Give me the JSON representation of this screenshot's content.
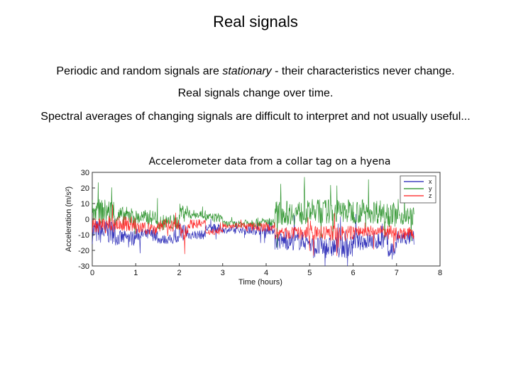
{
  "slide": {
    "title": "Real signals",
    "line1_before": "Periodic and random signals are ",
    "line1_emph": "stationary",
    "line1_after": " - their characteristics never change.",
    "line2": "Real signals change over time.",
    "line3": "Spectral averages of changing signals are difficult to interpret and not usually useful...",
    "caption": "Accelerometer data from a collar tag on a hyena"
  },
  "chart_data": {
    "type": "line",
    "xlabel": "Time (hours)",
    "ylabel": "Acceleration (m/s²)",
    "xlim": [
      0,
      8
    ],
    "ylim": [
      -30,
      30
    ],
    "xticks": [
      "0",
      "1",
      "2",
      "3",
      "4",
      "5",
      "6",
      "7",
      "8"
    ],
    "yticks": [
      "30",
      "20",
      "10",
      "0",
      "-10",
      "-20",
      "-30"
    ],
    "grid": false,
    "legend_position": "top-right",
    "series": [
      {
        "name": "x",
        "color": "#1f1fb4",
        "segments": [
          {
            "t0": 0.0,
            "t1": 0.5,
            "level": -8,
            "noise": 8
          },
          {
            "t0": 0.5,
            "t1": 1.0,
            "level": -12,
            "noise": 5
          },
          {
            "t0": 1.0,
            "t1": 1.5,
            "level": -10,
            "noise": 4
          },
          {
            "t0": 1.5,
            "t1": 2.0,
            "level": -13,
            "noise": 3
          },
          {
            "t0": 2.0,
            "t1": 2.2,
            "level": -8,
            "noise": 6
          },
          {
            "t0": 2.2,
            "t1": 2.6,
            "level": -10,
            "noise": 3
          },
          {
            "t0": 2.6,
            "t1": 3.0,
            "level": -6,
            "noise": 3
          },
          {
            "t0": 3.0,
            "t1": 3.5,
            "level": -7,
            "noise": 2
          },
          {
            "t0": 3.5,
            "t1": 4.2,
            "level": -7,
            "noise": 3
          },
          {
            "t0": 4.2,
            "t1": 5.0,
            "level": -14,
            "noise": 6
          },
          {
            "t0": 5.0,
            "t1": 6.0,
            "level": -18,
            "noise": 7
          },
          {
            "t0": 6.0,
            "t1": 6.8,
            "level": -14,
            "noise": 6
          },
          {
            "t0": 6.8,
            "t1": 7.0,
            "level": -20,
            "noise": 7
          },
          {
            "t0": 7.0,
            "t1": 7.4,
            "level": -12,
            "noise": 5
          }
        ]
      },
      {
        "name": "y",
        "color": "#1a8a1a",
        "segments": [
          {
            "t0": 0.0,
            "t1": 0.5,
            "level": 5,
            "noise": 8
          },
          {
            "t0": 0.5,
            "t1": 1.0,
            "level": 2,
            "noise": 6
          },
          {
            "t0": 1.0,
            "t1": 1.5,
            "level": 1,
            "noise": 5
          },
          {
            "t0": 1.5,
            "t1": 2.0,
            "level": -2,
            "noise": 5
          },
          {
            "t0": 2.0,
            "t1": 2.2,
            "level": 5,
            "noise": 5
          },
          {
            "t0": 2.2,
            "t1": 2.6,
            "level": 3,
            "noise": 3
          },
          {
            "t0": 2.6,
            "t1": 3.0,
            "level": 1,
            "noise": 3
          },
          {
            "t0": 3.0,
            "t1": 3.5,
            "level": -3,
            "noise": 2
          },
          {
            "t0": 3.5,
            "t1": 4.2,
            "level": -2,
            "noise": 3
          },
          {
            "t0": 4.2,
            "t1": 5.0,
            "level": 4,
            "noise": 8
          },
          {
            "t0": 5.0,
            "t1": 6.0,
            "level": 5,
            "noise": 8
          },
          {
            "t0": 6.0,
            "t1": 6.8,
            "level": 5,
            "noise": 8
          },
          {
            "t0": 6.8,
            "t1": 7.0,
            "level": 3,
            "noise": 8
          },
          {
            "t0": 7.0,
            "t1": 7.4,
            "level": 2,
            "noise": 6
          }
        ]
      },
      {
        "name": "z",
        "color": "#ff1a1a",
        "segments": [
          {
            "t0": 0.0,
            "t1": 0.5,
            "level": -4,
            "noise": 5
          },
          {
            "t0": 0.5,
            "t1": 1.0,
            "level": -3,
            "noise": 5
          },
          {
            "t0": 1.0,
            "t1": 1.5,
            "level": -6,
            "noise": 4
          },
          {
            "t0": 1.5,
            "t1": 2.0,
            "level": -4,
            "noise": 4
          },
          {
            "t0": 2.0,
            "t1": 2.2,
            "level": -8,
            "noise": 5
          },
          {
            "t0": 2.2,
            "t1": 2.6,
            "level": -3,
            "noise": 3
          },
          {
            "t0": 2.6,
            "t1": 3.0,
            "level": -8,
            "noise": 2
          },
          {
            "t0": 3.0,
            "t1": 3.5,
            "level": -4,
            "noise": 2
          },
          {
            "t0": 3.5,
            "t1": 4.2,
            "level": -5,
            "noise": 3
          },
          {
            "t0": 4.2,
            "t1": 5.0,
            "level": -9,
            "noise": 4
          },
          {
            "t0": 5.0,
            "t1": 6.0,
            "level": -9,
            "noise": 5
          },
          {
            "t0": 6.0,
            "t1": 6.8,
            "level": -8,
            "noise": 4
          },
          {
            "t0": 6.8,
            "t1": 7.0,
            "level": -9,
            "noise": 5
          },
          {
            "t0": 7.0,
            "t1": 7.4,
            "level": -9,
            "noise": 4
          }
        ]
      }
    ]
  }
}
